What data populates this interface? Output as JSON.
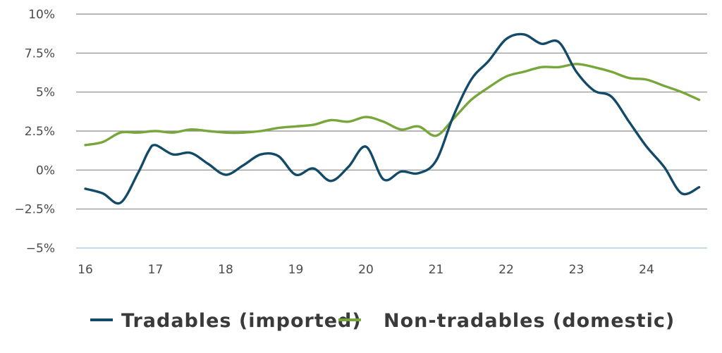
{
  "chart_data": {
    "type": "line",
    "title": "",
    "xlabel": "",
    "ylabel": "",
    "xlim": [
      16.0,
      24.85
    ],
    "ylim": [
      -5,
      10
    ],
    "x_ticks": [
      "16",
      "17",
      "18",
      "19",
      "20",
      "21",
      "22",
      "23",
      "24"
    ],
    "y_ticks": [
      "10%",
      "7.5%",
      "5%",
      "2.5%",
      "0%",
      "−2.5%",
      "−5%"
    ],
    "grid": "horizontal",
    "legend_position": "bottom",
    "series": [
      {
        "name": "Tradables (imported)",
        "color": "#124a68",
        "points": [
          [
            16.0,
            -1.2
          ],
          [
            16.25,
            -1.5
          ],
          [
            16.5,
            -2.1
          ],
          [
            16.75,
            -0.2
          ],
          [
            16.9,
            1.2
          ],
          [
            17.0,
            1.6
          ],
          [
            17.25,
            1.0
          ],
          [
            17.5,
            1.1
          ],
          [
            17.75,
            0.4
          ],
          [
            18.0,
            -0.3
          ],
          [
            18.25,
            0.3
          ],
          [
            18.5,
            1.0
          ],
          [
            18.75,
            0.9
          ],
          [
            19.0,
            -0.3
          ],
          [
            19.25,
            0.1
          ],
          [
            19.5,
            -0.7
          ],
          [
            19.75,
            0.2
          ],
          [
            20.0,
            1.5
          ],
          [
            20.25,
            -0.6
          ],
          [
            20.5,
            -0.1
          ],
          [
            20.75,
            -0.2
          ],
          [
            21.0,
            0.6
          ],
          [
            21.25,
            3.5
          ],
          [
            21.5,
            5.8
          ],
          [
            21.75,
            7.0
          ],
          [
            22.0,
            8.4
          ],
          [
            22.25,
            8.7
          ],
          [
            22.5,
            8.1
          ],
          [
            22.75,
            8.2
          ],
          [
            23.0,
            6.3
          ],
          [
            23.25,
            5.1
          ],
          [
            23.5,
            4.7
          ],
          [
            23.75,
            3.1
          ],
          [
            24.0,
            1.5
          ],
          [
            24.25,
            0.2
          ],
          [
            24.5,
            -1.5
          ],
          [
            24.75,
            -1.1
          ]
        ]
      },
      {
        "name": "Non-tradables (domestic)",
        "color": "#77a73a",
        "points": [
          [
            16.0,
            1.6
          ],
          [
            16.25,
            1.8
          ],
          [
            16.5,
            2.4
          ],
          [
            16.75,
            2.4
          ],
          [
            17.0,
            2.5
          ],
          [
            17.25,
            2.4
          ],
          [
            17.5,
            2.6
          ],
          [
            17.75,
            2.5
          ],
          [
            18.0,
            2.4
          ],
          [
            18.25,
            2.4
          ],
          [
            18.5,
            2.5
          ],
          [
            18.75,
            2.7
          ],
          [
            19.0,
            2.8
          ],
          [
            19.25,
            2.9
          ],
          [
            19.5,
            3.2
          ],
          [
            19.75,
            3.1
          ],
          [
            20.0,
            3.4
          ],
          [
            20.25,
            3.1
          ],
          [
            20.5,
            2.6
          ],
          [
            20.75,
            2.8
          ],
          [
            21.0,
            2.2
          ],
          [
            21.25,
            3.3
          ],
          [
            21.5,
            4.5
          ],
          [
            21.75,
            5.3
          ],
          [
            22.0,
            6.0
          ],
          [
            22.25,
            6.3
          ],
          [
            22.5,
            6.6
          ],
          [
            22.75,
            6.6
          ],
          [
            23.0,
            6.8
          ],
          [
            23.25,
            6.6
          ],
          [
            23.5,
            6.3
          ],
          [
            23.75,
            5.9
          ],
          [
            24.0,
            5.8
          ],
          [
            24.25,
            5.4
          ],
          [
            24.5,
            5.0
          ],
          [
            24.75,
            4.5
          ]
        ]
      }
    ]
  }
}
